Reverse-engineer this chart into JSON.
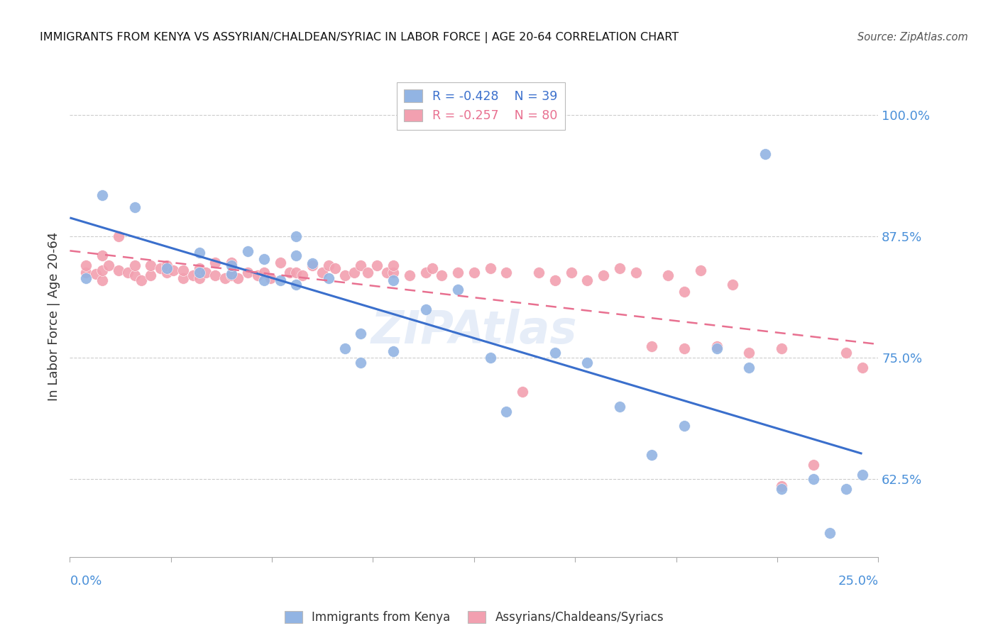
{
  "title": "IMMIGRANTS FROM KENYA VS ASSYRIAN/CHALDEAN/SYRIAC IN LABOR FORCE | AGE 20-64 CORRELATION CHART",
  "source": "Source: ZipAtlas.com",
  "ylabel": "In Labor Force | Age 20-64",
  "color_kenya": "#92b4e3",
  "color_assyrian": "#f2a0b0",
  "color_line_kenya": "#3a6fcc",
  "color_line_assyrian": "#e87090",
  "color_axis_labels": "#4a90d9",
  "legend_r1": "-0.428",
  "legend_n1": "39",
  "legend_r2": "-0.257",
  "legend_n2": "80",
  "xlim": [
    0.0,
    0.25
  ],
  "ylim": [
    0.545,
    1.04
  ],
  "ytick_values": [
    1.0,
    0.875,
    0.75,
    0.625
  ],
  "ytick_labels": [
    "100.0%",
    "87.5%",
    "75.0%",
    "62.5%"
  ],
  "kenya_x": [
    0.005,
    0.01,
    0.02,
    0.03,
    0.04,
    0.04,
    0.05,
    0.05,
    0.055,
    0.06,
    0.06,
    0.065,
    0.07,
    0.07,
    0.07,
    0.075,
    0.08,
    0.085,
    0.09,
    0.09,
    0.1,
    0.1,
    0.11,
    0.12,
    0.13,
    0.135,
    0.15,
    0.16,
    0.17,
    0.18,
    0.19,
    0.2,
    0.21,
    0.215,
    0.22,
    0.23,
    0.235,
    0.24,
    0.245
  ],
  "kenya_y": [
    0.832,
    0.917,
    0.905,
    0.842,
    0.838,
    0.858,
    0.836,
    0.845,
    0.86,
    0.83,
    0.852,
    0.83,
    0.825,
    0.855,
    0.875,
    0.847,
    0.832,
    0.76,
    0.745,
    0.775,
    0.757,
    0.83,
    0.8,
    0.82,
    0.75,
    0.695,
    0.755,
    0.745,
    0.7,
    0.65,
    0.68,
    0.76,
    0.74,
    0.96,
    0.615,
    0.625,
    0.57,
    0.615,
    0.63
  ],
  "assy_x": [
    0.005,
    0.005,
    0.008,
    0.01,
    0.01,
    0.01,
    0.012,
    0.015,
    0.015,
    0.018,
    0.02,
    0.02,
    0.022,
    0.025,
    0.025,
    0.028,
    0.03,
    0.03,
    0.032,
    0.035,
    0.035,
    0.038,
    0.04,
    0.04,
    0.042,
    0.045,
    0.045,
    0.048,
    0.05,
    0.05,
    0.052,
    0.055,
    0.058,
    0.06,
    0.062,
    0.065,
    0.068,
    0.07,
    0.072,
    0.075,
    0.078,
    0.08,
    0.082,
    0.085,
    0.088,
    0.09,
    0.092,
    0.095,
    0.098,
    0.1,
    0.1,
    0.105,
    0.11,
    0.112,
    0.115,
    0.12,
    0.125,
    0.13,
    0.135,
    0.14,
    0.145,
    0.15,
    0.155,
    0.16,
    0.165,
    0.17,
    0.175,
    0.18,
    0.185,
    0.19,
    0.19,
    0.195,
    0.2,
    0.205,
    0.21,
    0.22,
    0.22,
    0.23,
    0.24,
    0.245
  ],
  "assy_y": [
    0.838,
    0.845,
    0.836,
    0.83,
    0.855,
    0.84,
    0.845,
    0.84,
    0.875,
    0.838,
    0.835,
    0.845,
    0.83,
    0.835,
    0.845,
    0.842,
    0.838,
    0.845,
    0.84,
    0.832,
    0.84,
    0.835,
    0.832,
    0.842,
    0.838,
    0.835,
    0.848,
    0.832,
    0.835,
    0.848,
    0.832,
    0.838,
    0.835,
    0.838,
    0.832,
    0.848,
    0.838,
    0.838,
    0.835,
    0.845,
    0.838,
    0.845,
    0.842,
    0.835,
    0.838,
    0.845,
    0.838,
    0.845,
    0.838,
    0.838,
    0.845,
    0.835,
    0.838,
    0.842,
    0.835,
    0.838,
    0.838,
    0.842,
    0.838,
    0.715,
    0.838,
    0.83,
    0.838,
    0.83,
    0.835,
    0.842,
    0.838,
    0.762,
    0.835,
    0.818,
    0.76,
    0.84,
    0.762,
    0.825,
    0.755,
    0.76,
    0.618,
    0.64,
    0.755,
    0.74
  ]
}
